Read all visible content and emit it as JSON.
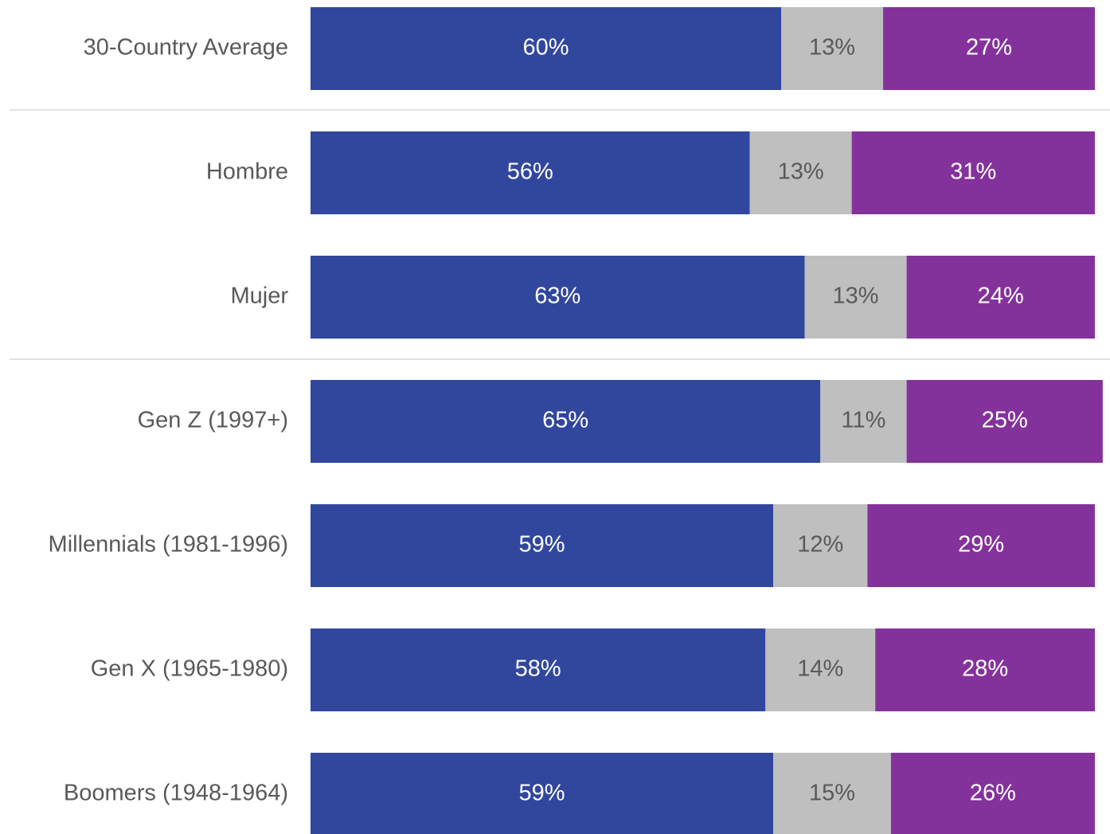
{
  "chart_data": {
    "type": "stacked-barh",
    "categories": [
      "30-Country Average",
      "Hombre",
      "Mujer",
      "Gen Z (1997+)",
      "Millennials (1981-1996)",
      "Gen X (1965-1980)",
      "Boomers (1948-1964)"
    ],
    "series": [
      {
        "color": "#31479e",
        "values": [
          60,
          56,
          63,
          65,
          59,
          58,
          59
        ],
        "value_labels": [
          "60%",
          "56%",
          "63%",
          "65%",
          "59%",
          "58%",
          "59%"
        ]
      },
      {
        "color": "#bfbfbf",
        "values": [
          13,
          13,
          13,
          11,
          12,
          14,
          15
        ],
        "value_labels": [
          "13%",
          "13%",
          "13%",
          "11%",
          "12%",
          "14%",
          "15%"
        ]
      },
      {
        "color": "#84329b",
        "values": [
          27,
          31,
          24,
          25,
          29,
          28,
          26
        ],
        "value_labels": [
          "27%",
          "31%",
          "24%",
          "25%",
          "29%",
          "28%",
          "26%"
        ]
      }
    ],
    "xlim": [
      0,
      100
    ]
  }
}
